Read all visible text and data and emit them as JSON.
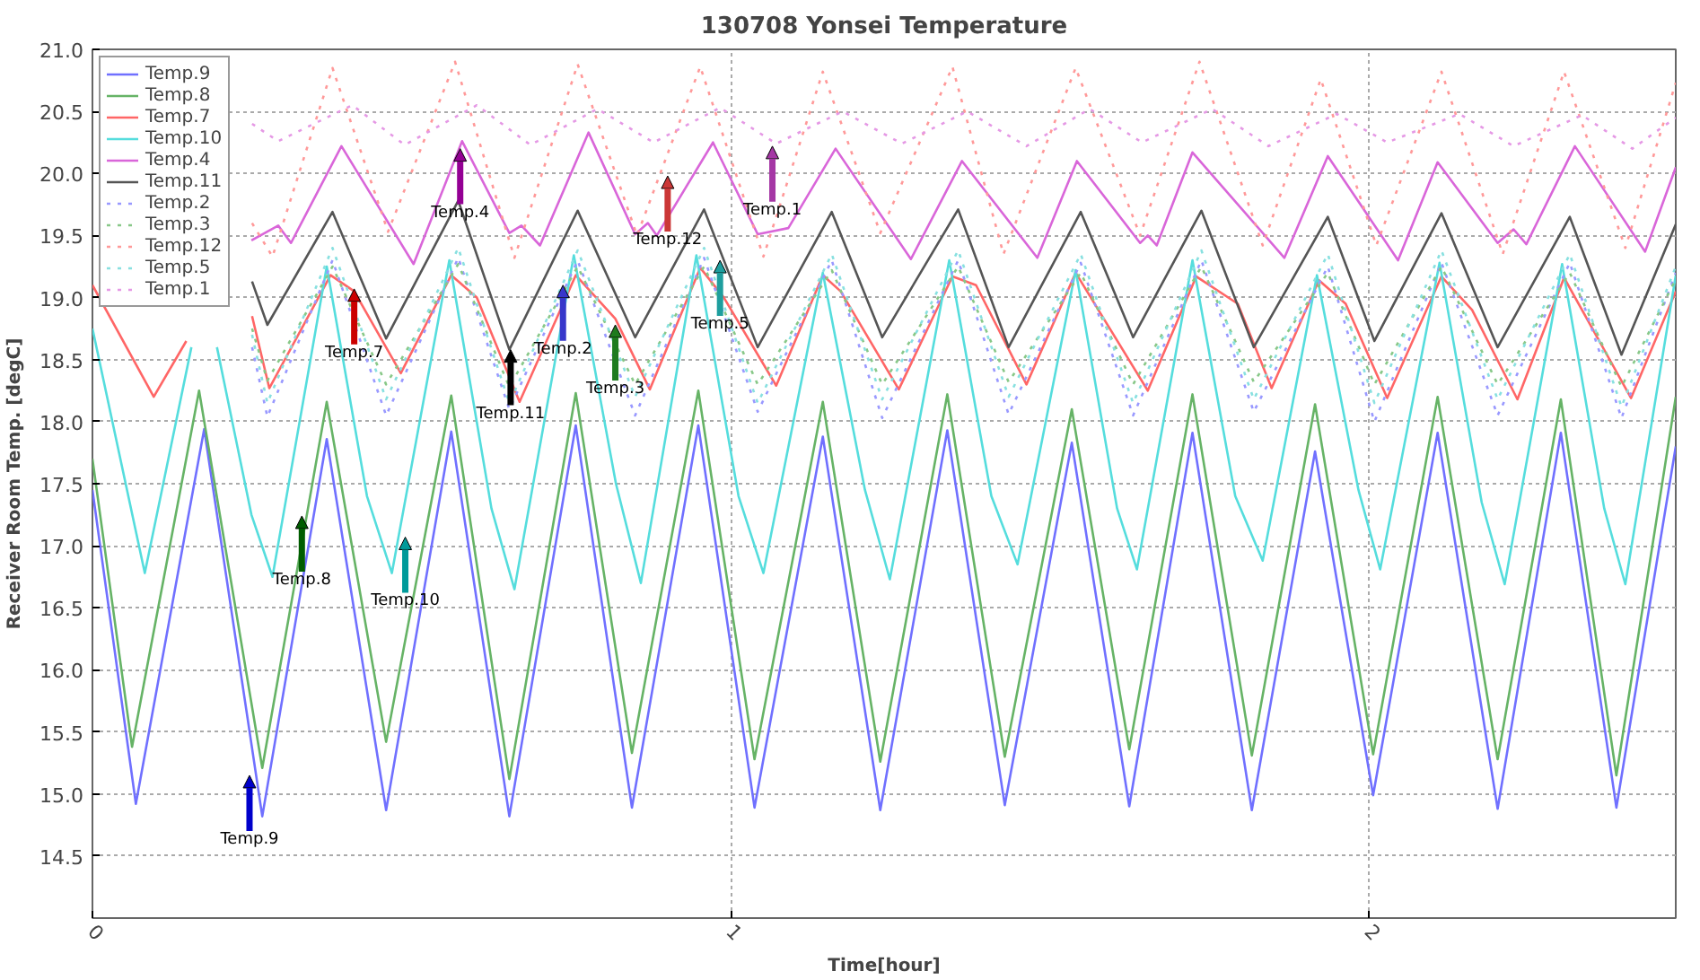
{
  "chart_data": {
    "type": "line",
    "title": "130708 Yonsei Temperature",
    "xlabel": "Time[hour]",
    "ylabel": "Receiver Room Temp. [degC]",
    "xlim": [
      0,
      2.48
    ],
    "ylim": [
      14,
      21
    ],
    "xticks": [
      0,
      1,
      2
    ],
    "yticks": [
      14.5,
      {
        "value": 15,
        "label": "15.0"
      },
      15.5,
      {
        "value": 16,
        "label": "16.0"
      },
      16.5,
      {
        "value": 17,
        "label": "17.0"
      },
      17.5,
      {
        "value": 18,
        "label": "18.0"
      },
      18.5,
      {
        "value": 19,
        "label": "19.0"
      },
      19.5,
      {
        "value": 20,
        "label": "20.0"
      },
      20.5,
      {
        "value": 21,
        "label": "21.0"
      }
    ],
    "grid": true,
    "legend": "top left",
    "series": [
      {
        "name": "Temp.9",
        "color": "#7070ff",
        "x": [
          0,
          0.068,
          0.175,
          0.266,
          0.367,
          0.46,
          0.562,
          0.653,
          0.757,
          0.845,
          0.949,
          1.037,
          1.144,
          1.234,
          1.339,
          1.429,
          1.534,
          1.624,
          1.723,
          1.816,
          1.915,
          2.006,
          2.107,
          2.201,
          2.3,
          2.387,
          2.48
        ],
        "values": [
          17.45,
          14.92,
          17.94,
          14.82,
          17.86,
          14.87,
          17.92,
          14.82,
          17.97,
          14.89,
          17.97,
          14.89,
          17.88,
          14.87,
          17.93,
          14.91,
          17.83,
          14.9,
          17.91,
          14.87,
          17.76,
          14.99,
          17.91,
          14.88,
          17.91,
          14.89,
          17.8
        ]
      },
      {
        "name": "Temp.8",
        "color": "#66b366",
        "x": [
          0,
          0.062,
          0.167,
          0.266,
          0.367,
          0.46,
          0.562,
          0.653,
          0.757,
          0.845,
          0.949,
          1.037,
          1.144,
          1.234,
          1.339,
          1.429,
          1.534,
          1.624,
          1.723,
          1.816,
          1.915,
          2.006,
          2.107,
          2.201,
          2.3,
          2.387,
          2.48
        ],
        "values": [
          17.7,
          15.38,
          18.25,
          15.21,
          18.16,
          15.42,
          18.21,
          15.12,
          18.23,
          15.33,
          18.25,
          15.28,
          18.16,
          15.26,
          18.22,
          15.3,
          18.1,
          15.36,
          18.22,
          15.31,
          18.14,
          15.32,
          18.2,
          15.28,
          18.18,
          15.15,
          18.2
        ]
      },
      {
        "name": "Temp.7",
        "color": "#ff6666",
        "x": [
          0,
          0.096,
          0.147,
          0.175,
          0.25,
          0.277,
          0.373,
          0.41,
          0.483,
          0.562,
          0.602,
          0.669,
          0.757,
          0.819,
          0.873,
          0.952,
          0.989,
          1.071,
          1.144,
          1.172,
          1.263,
          1.347,
          1.384,
          1.463,
          1.54,
          1.653,
          1.729,
          1.794,
          1.847,
          1.921,
          1.963,
          2.028,
          2.113,
          2.161,
          2.232,
          2.305,
          2.41,
          2.48
        ],
        "values": [
          19.1,
          18.2,
          18.65,
          null,
          18.85,
          18.27,
          19.18,
          19.05,
          18.39,
          19.18,
          19.0,
          18.16,
          19.18,
          18.83,
          18.26,
          19.24,
          19.0,
          18.29,
          19.18,
          19.05,
          18.26,
          19.17,
          19.1,
          18.3,
          19.2,
          18.25,
          19.17,
          18.95,
          18.27,
          19.14,
          18.95,
          18.19,
          19.17,
          18.9,
          18.18,
          19.16,
          18.19,
          19.05
        ]
      },
      {
        "name": "Temp.10",
        "color": "#55dddd",
        "x": [
          0,
          0.082,
          0.155,
          0.175,
          0.195,
          0.249,
          0.282,
          0.367,
          0.43,
          0.469,
          0.559,
          0.625,
          0.661,
          0.754,
          0.82,
          0.859,
          0.946,
          1.012,
          1.051,
          1.144,
          1.21,
          1.249,
          1.342,
          1.408,
          1.449,
          1.54,
          1.605,
          1.636,
          1.723,
          1.79,
          1.833,
          1.918,
          1.983,
          2.017,
          2.11,
          2.176,
          2.212,
          2.302,
          2.368,
          2.401,
          2.48
        ],
        "values": [
          18.75,
          16.78,
          18.6,
          null,
          18.6,
          17.25,
          16.75,
          19.25,
          17.4,
          16.78,
          19.3,
          17.3,
          16.65,
          19.34,
          17.5,
          16.7,
          19.34,
          17.4,
          16.78,
          19.2,
          17.45,
          16.73,
          19.3,
          17.4,
          16.85,
          19.22,
          17.3,
          16.81,
          19.3,
          17.4,
          16.88,
          19.18,
          17.45,
          16.81,
          19.28,
          17.35,
          16.69,
          19.27,
          17.3,
          16.69,
          19.18
        ]
      },
      {
        "name": "Temp.4",
        "color": "#d966d9",
        "x": [
          0.249,
          0.291,
          0.311,
          0.39,
          0.503,
          0.579,
          0.653,
          0.672,
          0.701,
          0.777,
          0.85,
          0.87,
          0.884,
          0.972,
          1.042,
          1.09,
          1.164,
          1.282,
          1.362,
          1.48,
          1.542,
          1.641,
          1.653,
          1.667,
          1.723,
          1.867,
          1.935,
          2.045,
          2.107,
          2.201,
          2.226,
          2.246,
          2.322,
          2.432,
          2.48
        ],
        "values": [
          19.46,
          19.58,
          19.44,
          20.22,
          19.27,
          20.26,
          19.52,
          19.58,
          19.42,
          20.33,
          19.51,
          19.6,
          19.5,
          20.25,
          19.51,
          19.56,
          20.2,
          19.31,
          20.1,
          19.32,
          20.1,
          19.44,
          19.5,
          19.42,
          20.17,
          19.32,
          20.14,
          19.3,
          20.09,
          19.44,
          19.55,
          19.43,
          20.22,
          19.37,
          20.05
        ]
      },
      {
        "name": "Temp.11",
        "color": "#555555",
        "x": [
          0.25,
          0.274,
          0.376,
          0.46,
          0.573,
          0.653,
          0.76,
          0.85,
          0.958,
          1.042,
          1.158,
          1.237,
          1.356,
          1.435,
          1.548,
          1.63,
          1.737,
          1.819,
          1.935,
          2.008,
          2.113,
          2.201,
          2.314,
          2.395,
          2.48
        ],
        "values": [
          19.13,
          18.78,
          19.69,
          18.67,
          19.78,
          18.58,
          19.7,
          18.68,
          19.71,
          18.6,
          19.69,
          18.68,
          19.71,
          18.6,
          19.69,
          18.68,
          19.7,
          18.6,
          19.65,
          18.65,
          19.68,
          18.6,
          19.65,
          18.54,
          19.59
        ]
      },
      {
        "name": "Temp.2",
        "color": "#9999ff",
        "line_style": "dotted",
        "x": [
          0.25,
          0.274,
          0.376,
          0.46,
          0.573,
          0.653,
          0.76,
          0.85,
          0.958,
          1.042,
          1.158,
          1.237,
          1.356,
          1.435,
          1.548,
          1.63,
          1.737,
          1.819,
          1.935,
          2.008,
          2.113,
          2.201,
          2.314,
          2.395,
          2.48
        ],
        "values": [
          18.6,
          18.04,
          19.3,
          18.05,
          19.32,
          18.1,
          19.3,
          18.05,
          19.32,
          18.08,
          19.3,
          18.03,
          19.3,
          18.06,
          19.28,
          18.05,
          19.3,
          18.08,
          19.25,
          18.0,
          19.28,
          18.05,
          19.28,
          18.03,
          19.2
        ]
      },
      {
        "name": "Temp.3",
        "color": "#88c888",
        "line_style": "dotted",
        "x": [
          0.25,
          0.274,
          0.376,
          0.46,
          0.573,
          0.653,
          0.76,
          0.85,
          0.958,
          1.042,
          1.158,
          1.237,
          1.356,
          1.435,
          1.548,
          1.63,
          1.737,
          1.819,
          1.935,
          2.008,
          2.113,
          2.201,
          2.314,
          2.395,
          2.48
        ],
        "values": [
          18.75,
          18.33,
          19.25,
          18.3,
          19.27,
          18.28,
          19.25,
          18.3,
          19.25,
          18.3,
          19.22,
          18.3,
          19.25,
          18.32,
          19.2,
          18.3,
          19.25,
          18.32,
          19.2,
          18.3,
          19.25,
          18.3,
          19.2,
          18.28,
          19.15
        ]
      },
      {
        "name": "Temp.12",
        "color": "#ff9999",
        "line_style": "dotted",
        "x": [
          0.25,
          0.282,
          0.376,
          0.463,
          0.568,
          0.661,
          0.76,
          0.853,
          0.952,
          1.051,
          1.144,
          1.234,
          1.347,
          1.427,
          1.54,
          1.641,
          1.734,
          1.833,
          1.924,
          2.011,
          2.113,
          2.209,
          2.305,
          2.401,
          2.48
        ],
        "values": [
          19.6,
          19.33,
          20.85,
          19.53,
          20.9,
          19.32,
          20.88,
          19.5,
          20.86,
          19.33,
          20.82,
          19.52,
          20.86,
          19.35,
          20.85,
          19.5,
          20.9,
          19.42,
          20.76,
          19.42,
          20.82,
          19.35,
          20.82,
          19.4,
          20.73
        ]
      },
      {
        "name": "Temp.5",
        "color": "#88e0e0",
        "line_style": "dotted",
        "x": [
          0.25,
          0.274,
          0.376,
          0.46,
          0.573,
          0.653,
          0.76,
          0.85,
          0.958,
          1.042,
          1.158,
          1.237,
          1.356,
          1.435,
          1.548,
          1.63,
          1.737,
          1.819,
          1.935,
          2.008,
          2.113,
          2.201,
          2.314,
          2.395,
          2.48
        ],
        "values": [
          18.7,
          18.15,
          19.4,
          18.18,
          19.4,
          18.15,
          19.38,
          18.2,
          19.4,
          18.15,
          19.35,
          18.18,
          19.38,
          18.2,
          19.35,
          18.15,
          19.38,
          18.18,
          19.35,
          18.15,
          19.38,
          18.18,
          19.35,
          18.12,
          19.25
        ]
      },
      {
        "name": "Temp.1",
        "color": "#e599e5",
        "line_style": "dotted",
        "x": [
          0.25,
          0.291,
          0.407,
          0.489,
          0.602,
          0.686,
          0.791,
          0.879,
          0.983,
          1.071,
          1.175,
          1.268,
          1.37,
          1.463,
          1.562,
          1.644,
          1.754,
          1.842,
          1.949,
          2.028,
          2.141,
          2.226,
          2.333,
          2.412,
          2.48
        ],
        "values": [
          20.4,
          20.26,
          20.55,
          20.23,
          20.55,
          20.23,
          20.52,
          20.25,
          20.53,
          20.24,
          20.5,
          20.24,
          20.5,
          20.22,
          20.52,
          20.25,
          20.52,
          20.22,
          20.48,
          20.25,
          20.48,
          20.22,
          20.47,
          20.2,
          20.45
        ]
      }
    ],
    "annotations": [
      {
        "text": "Temp.9",
        "x": 0.246,
        "y": 15.15
      },
      {
        "text": "Temp.8",
        "x": 0.328,
        "y": 17.24
      },
      {
        "text": "Temp.7",
        "x": 0.41,
        "y": 19.07
      },
      {
        "text": "Temp.10",
        "x": 0.49,
        "y": 17.07
      },
      {
        "text": "Temp.4",
        "x": 0.576,
        "y": 20.2
      },
      {
        "text": "Temp.11",
        "x": 0.655,
        "y": 18.58
      },
      {
        "text": "Temp.2",
        "x": 0.737,
        "y": 19.1
      },
      {
        "text": "Temp.3",
        "x": 0.819,
        "y": 18.78
      },
      {
        "text": "Temp.12",
        "x": 0.901,
        "y": 19.98
      },
      {
        "text": "Temp.5",
        "x": 0.983,
        "y": 19.3
      },
      {
        "text": "Temp.1",
        "x": 1.065,
        "y": 20.22
      }
    ]
  }
}
